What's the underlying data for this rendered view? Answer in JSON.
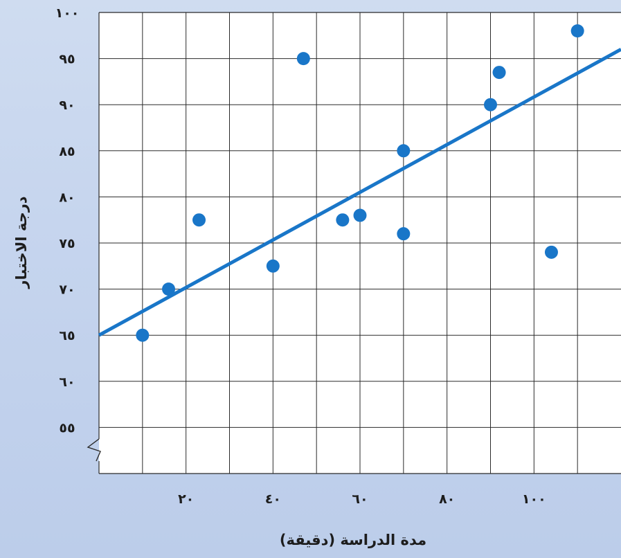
{
  "chart_data": {
    "type": "scatter",
    "xlabel": "مدة الدراسة (دقيقة)",
    "ylabel": "درجة الاختبار",
    "xlim": [
      0,
      120
    ],
    "ylim": [
      50,
      100
    ],
    "x_ticks": [
      20,
      40,
      60,
      80,
      100
    ],
    "x_tick_labels": [
      "٢٠",
      "٤٠",
      "٦٠",
      "٨٠",
      "١٠٠"
    ],
    "y_ticks": [
      55,
      60,
      65,
      70,
      75,
      80,
      85,
      90,
      95,
      100
    ],
    "y_tick_labels": [
      "٥٥",
      "٦٠",
      "٦٥",
      "٧٠",
      "٧٥",
      "٨٠",
      "٨٥",
      "٩٠",
      "٩٥",
      "١٠٠"
    ],
    "axis_break": "y",
    "grid": true,
    "colors": {
      "points": "#1976c8",
      "trend_line": "#1976c8",
      "grid": "#2a2a2a",
      "plot_bg": "#ffffff"
    },
    "points": [
      {
        "x": 10,
        "y": 65
      },
      {
        "x": 16,
        "y": 70
      },
      {
        "x": 23,
        "y": 77.5
      },
      {
        "x": 40,
        "y": 72.5
      },
      {
        "x": 47,
        "y": 95
      },
      {
        "x": 56,
        "y": 77.5
      },
      {
        "x": 60,
        "y": 78
      },
      {
        "x": 70,
        "y": 76
      },
      {
        "x": 70,
        "y": 85
      },
      {
        "x": 90,
        "y": 90
      },
      {
        "x": 92,
        "y": 93.5
      },
      {
        "x": 104,
        "y": 74
      },
      {
        "x": 110,
        "y": 98
      }
    ],
    "trend_line": {
      "x1": 0,
      "y1": 65,
      "x2": 120,
      "y2": 96
    }
  }
}
